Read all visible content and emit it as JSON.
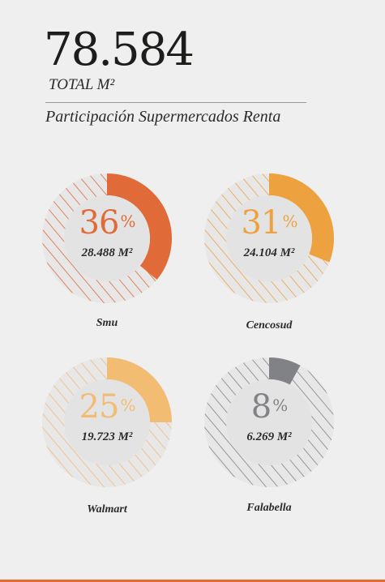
{
  "header": {
    "total_value": "78.584",
    "total_label": "TOTAL M²",
    "subtitle": "Participación Supermercados Renta"
  },
  "pct_symbol": "%",
  "chart_data": {
    "type": "pie",
    "title": "Participación Supermercados Renta",
    "unit": "%",
    "categories": [
      "Smu",
      "Cencosud",
      "Walmart",
      "Falabella"
    ],
    "values": [
      36,
      31,
      25,
      8
    ],
    "area_labels": [
      "28.488 M²",
      "24.104 M²",
      "19.723 M²",
      "6.269 M²"
    ],
    "colors": [
      "#e06a38",
      "#eda23f",
      "#f2bc72",
      "#808285"
    ]
  }
}
